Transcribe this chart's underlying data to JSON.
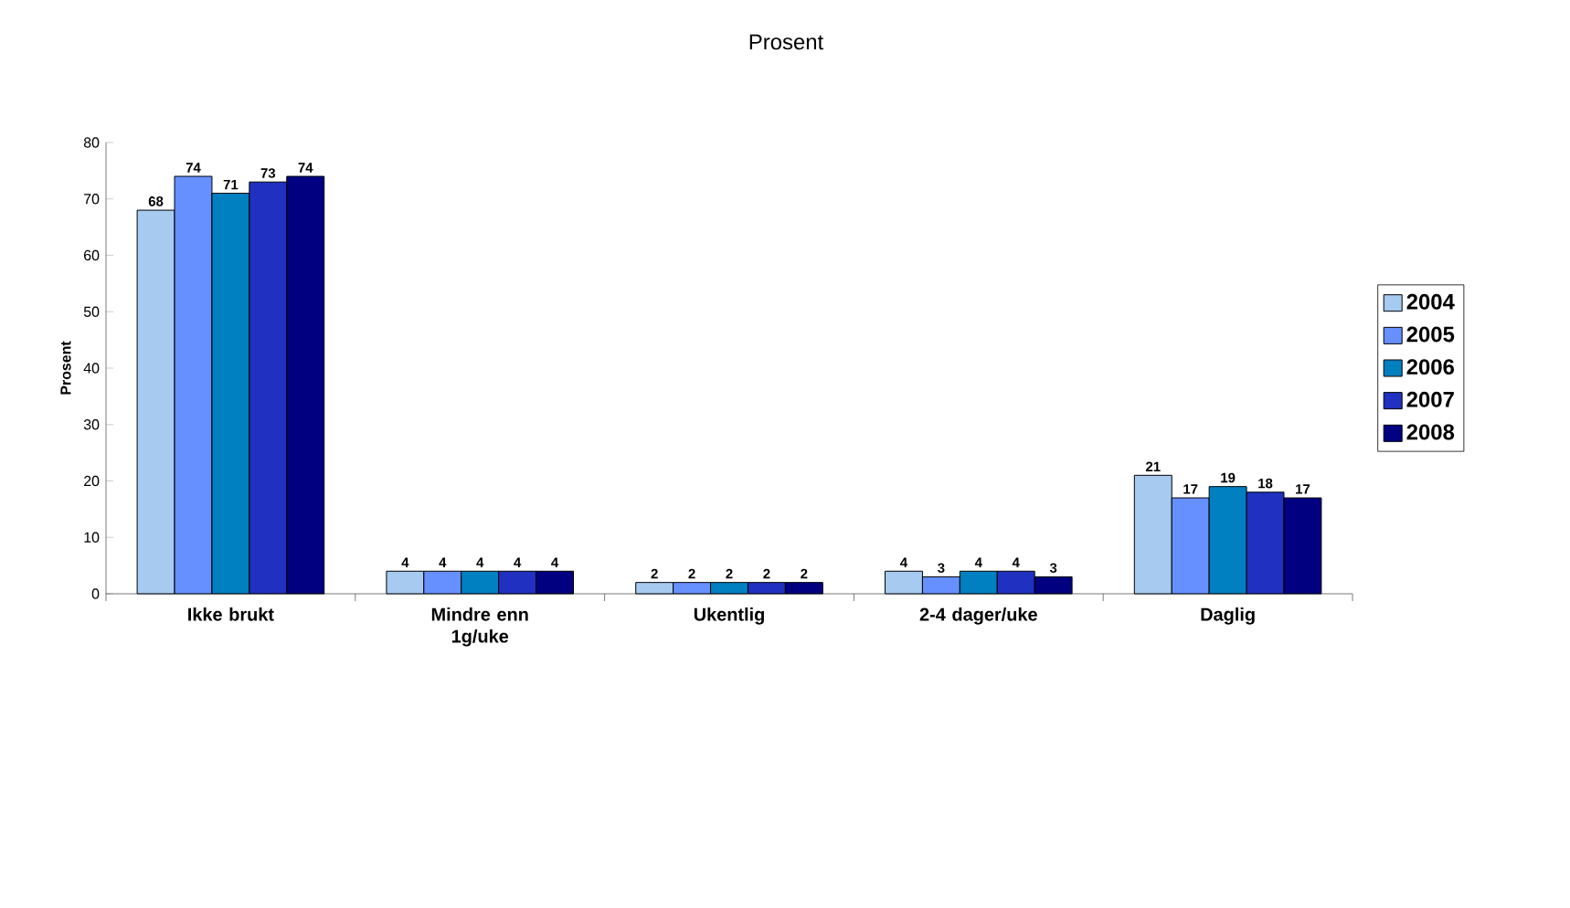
{
  "chart_data": {
    "type": "bar",
    "title": "Prosent",
    "ylabel": "Prosent",
    "categories": [
      "Ikke brukt",
      "Mindre enn 1g/uke",
      "Ukentlig",
      "2-4 dager/uke",
      "Daglig"
    ],
    "series": [
      {
        "name": "2004",
        "color": "#a6caf0",
        "values": [
          68,
          4,
          2,
          4,
          21
        ]
      },
      {
        "name": "2005",
        "color": "#6690ff",
        "values": [
          74,
          4,
          2,
          3,
          17
        ]
      },
      {
        "name": "2006",
        "color": "#0080c0",
        "values": [
          71,
          4,
          2,
          4,
          19
        ]
      },
      {
        "name": "2007",
        "color": "#2030c0",
        "values": [
          73,
          4,
          2,
          4,
          18
        ]
      },
      {
        "name": "2008",
        "color": "#000080",
        "values": [
          74,
          4,
          2,
          3,
          17
        ]
      }
    ],
    "ylim": [
      0,
      80
    ],
    "yticks": [
      0,
      10,
      20,
      30,
      40,
      50,
      60,
      70,
      80
    ],
    "data_labels": true,
    "legend": "right",
    "grid": false
  }
}
